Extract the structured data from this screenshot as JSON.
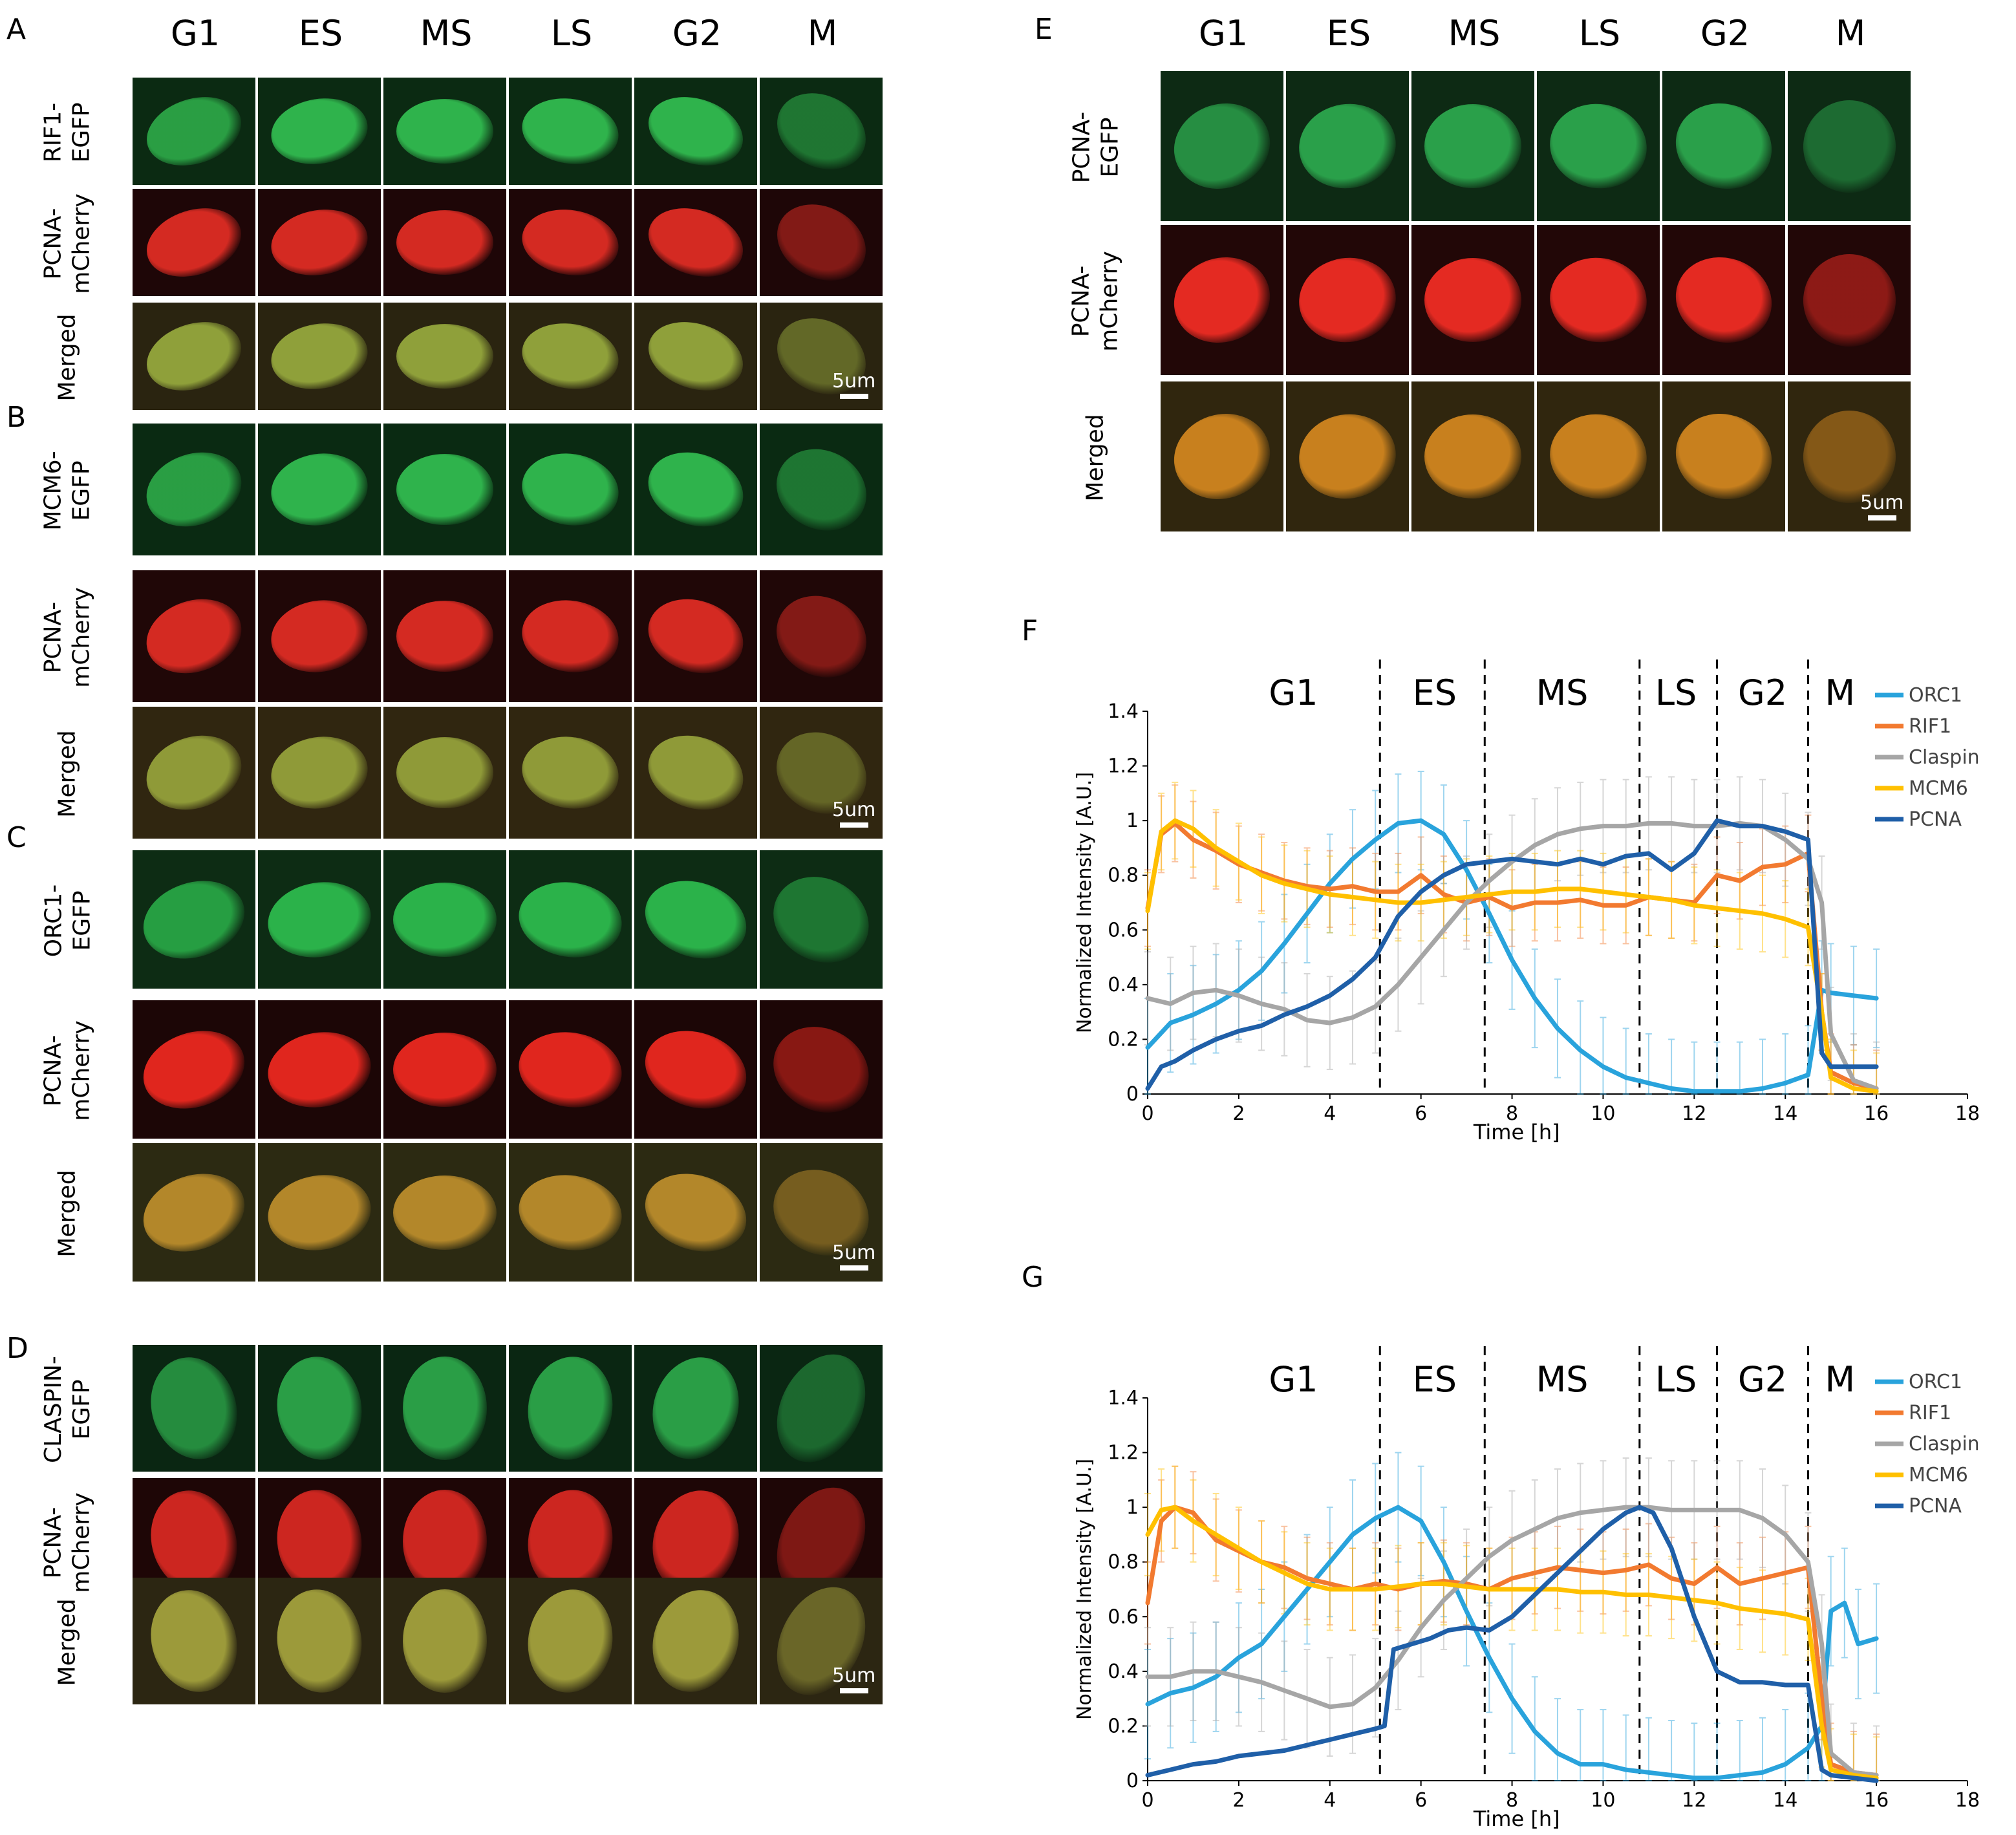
{
  "phases": [
    "G1",
    "ES",
    "MS",
    "LS",
    "G2",
    "M"
  ],
  "scale_bar": "5um",
  "panels": [
    {
      "letter": "A",
      "rows": [
        "RIF1-\nEGFP",
        "PCNA-\nmCherry",
        "Merged"
      ]
    },
    {
      "letter": "B",
      "rows": [
        "MCM6-\nEGFP",
        "PCNA-\nmCherry",
        "Merged"
      ]
    },
    {
      "letter": "C",
      "rows": [
        "ORC1-\nEGFP",
        "PCNA-\nmCherry",
        "Merged"
      ]
    },
    {
      "letter": "D",
      "rows": [
        "CLASPIN-\nEGFP",
        "PCNA-\nmCherry",
        "Merged"
      ]
    },
    {
      "letter": "E",
      "rows": [
        "PCNA-\nEGFP",
        "PCNA-\nmCherry",
        "Merged"
      ]
    }
  ],
  "chart_data": [
    {
      "panel": "F",
      "type": "line",
      "xlabel": "Time [h]",
      "ylabel": "Normalized Intensity [A.U.]",
      "xlim": [
        0,
        18
      ],
      "ylim": [
        0,
        1.4
      ],
      "xticks": [
        "0",
        "2",
        "4",
        "6",
        "8",
        "10",
        "12",
        "14",
        "16",
        "18"
      ],
      "yticks": [
        "0",
        "0.2",
        "0.4",
        "0.6",
        "0.8",
        "1",
        "1.2",
        "1.4"
      ],
      "phase_labels": [
        "G1",
        "ES",
        "MS",
        "LS",
        "G2",
        "M"
      ],
      "phase_label_x": [
        3.2,
        6.3,
        9.1,
        11.6,
        13.5,
        15.2
      ],
      "phase_boundaries": [
        5.1,
        7.4,
        10.8,
        12.5,
        14.5
      ],
      "series": [
        {
          "name": "ORC1",
          "color": "#29A3DC",
          "err": 0.18,
          "x": [
            0,
            0.5,
            1,
            1.5,
            2,
            2.5,
            3,
            3.5,
            4,
            4.5,
            5,
            5.5,
            6,
            6.5,
            7,
            7.5,
            8,
            8.5,
            9,
            9.5,
            10,
            10.5,
            11,
            11.5,
            12,
            12.5,
            13,
            13.5,
            14,
            14.5,
            14.8,
            15,
            15.5,
            16
          ],
          "y": [
            0.17,
            0.26,
            0.29,
            0.33,
            0.38,
            0.45,
            0.55,
            0.66,
            0.77,
            0.86,
            0.93,
            0.99,
            1.0,
            0.95,
            0.82,
            0.66,
            0.49,
            0.35,
            0.24,
            0.16,
            0.1,
            0.06,
            0.04,
            0.02,
            0.01,
            0.01,
            0.01,
            0.02,
            0.04,
            0.07,
            0.38,
            0.37,
            0.36,
            0.35
          ]
        },
        {
          "name": "RIF1",
          "color": "#F27A30",
          "err": 0.14,
          "x": [
            0,
            0.3,
            0.6,
            1,
            1.5,
            2,
            2.5,
            3,
            3.5,
            4,
            4.5,
            5,
            5.5,
            6,
            6.5,
            7,
            7.5,
            8,
            8.5,
            9,
            9.5,
            10,
            10.5,
            11,
            11.5,
            12,
            12.5,
            13,
            13.5,
            14,
            14.5,
            14.8,
            15,
            15.5,
            16
          ],
          "y": [
            0.68,
            0.95,
            0.99,
            0.93,
            0.89,
            0.84,
            0.81,
            0.78,
            0.76,
            0.75,
            0.76,
            0.74,
            0.74,
            0.8,
            0.73,
            0.7,
            0.72,
            0.68,
            0.7,
            0.7,
            0.71,
            0.69,
            0.69,
            0.72,
            0.71,
            0.7,
            0.8,
            0.78,
            0.83,
            0.84,
            0.88,
            0.3,
            0.08,
            0.04,
            0.02
          ]
        },
        {
          "name": "Claspin",
          "color": "#A6A6A6",
          "err": 0.17,
          "x": [
            0,
            0.5,
            1,
            1.5,
            2,
            2.5,
            3,
            3.5,
            4,
            4.5,
            5,
            5.5,
            6,
            6.5,
            7,
            7.5,
            8,
            8.5,
            9,
            9.5,
            10,
            10.5,
            11,
            11.5,
            12,
            12.5,
            13,
            13.5,
            14,
            14.5,
            14.8,
            15,
            15.5,
            16
          ],
          "y": [
            0.35,
            0.33,
            0.37,
            0.38,
            0.36,
            0.33,
            0.31,
            0.27,
            0.26,
            0.28,
            0.32,
            0.4,
            0.5,
            0.6,
            0.7,
            0.78,
            0.85,
            0.91,
            0.95,
            0.97,
            0.98,
            0.98,
            0.99,
            0.99,
            0.98,
            0.98,
            0.99,
            0.98,
            0.93,
            0.86,
            0.7,
            0.22,
            0.05,
            0.02
          ]
        },
        {
          "name": "MCM6",
          "color": "#FFC000",
          "err": 0.14,
          "x": [
            0,
            0.3,
            0.6,
            1,
            1.5,
            2,
            2.5,
            3,
            3.5,
            4,
            4.5,
            5,
            5.5,
            6,
            6.5,
            7,
            7.5,
            8,
            8.5,
            9,
            9.5,
            10,
            10.5,
            11,
            11.5,
            12,
            12.5,
            13,
            13.5,
            14,
            14.5,
            14.8,
            15,
            15.5,
            16
          ],
          "y": [
            0.67,
            0.96,
            1.0,
            0.97,
            0.9,
            0.85,
            0.8,
            0.77,
            0.75,
            0.73,
            0.72,
            0.71,
            0.7,
            0.7,
            0.71,
            0.72,
            0.73,
            0.74,
            0.74,
            0.75,
            0.75,
            0.74,
            0.73,
            0.72,
            0.71,
            0.69,
            0.68,
            0.67,
            0.66,
            0.64,
            0.61,
            0.3,
            0.06,
            0.02,
            0.01
          ]
        },
        {
          "name": "PCNA",
          "color": "#1F5FA8",
          "err": 0.0,
          "x": [
            0,
            0.3,
            0.6,
            1,
            1.5,
            2,
            2.5,
            3,
            3.5,
            4,
            4.5,
            5,
            5.5,
            6,
            6.5,
            7,
            7.5,
            8,
            8.5,
            9,
            9.5,
            10,
            10.5,
            11,
            11.5,
            12,
            12.5,
            13,
            13.5,
            14,
            14.5,
            14.8,
            15,
            15.5,
            16
          ],
          "y": [
            0.02,
            0.1,
            0.12,
            0.16,
            0.2,
            0.23,
            0.25,
            0.29,
            0.32,
            0.36,
            0.42,
            0.5,
            0.65,
            0.74,
            0.8,
            0.84,
            0.85,
            0.86,
            0.85,
            0.84,
            0.86,
            0.84,
            0.87,
            0.88,
            0.82,
            0.88,
            1.0,
            0.98,
            0.98,
            0.96,
            0.93,
            0.15,
            0.1,
            0.1,
            0.1
          ]
        }
      ]
    },
    {
      "panel": "G",
      "type": "line",
      "xlabel": "Time [h]",
      "ylabel": "Normalized Intensity [A.U.]",
      "xlim": [
        0,
        18
      ],
      "ylim": [
        0,
        1.4
      ],
      "xticks": [
        "0",
        "2",
        "4",
        "6",
        "8",
        "10",
        "12",
        "14",
        "16",
        "18"
      ],
      "yticks": [
        "0",
        "0.2",
        "0.4",
        "0.6",
        "0.8",
        "1",
        "1.2",
        "1.4"
      ],
      "phase_labels": [
        "G1",
        "ES",
        "MS",
        "LS",
        "G2",
        "M"
      ],
      "phase_label_x": [
        3.2,
        6.3,
        9.1,
        11.6,
        13.5,
        15.2
      ],
      "phase_boundaries": [
        5.1,
        7.4,
        10.8,
        12.5,
        14.5
      ],
      "series": [
        {
          "name": "ORC1",
          "color": "#29A3DC",
          "err": 0.2,
          "x": [
            0,
            0.5,
            1,
            1.5,
            2,
            2.5,
            3,
            3.5,
            4,
            4.5,
            5,
            5.5,
            6,
            6.5,
            7,
            7.5,
            8,
            8.5,
            9,
            9.5,
            10,
            10.5,
            11,
            11.5,
            12,
            12.5,
            13,
            13.5,
            14,
            14.5,
            14.8,
            15,
            15.3,
            15.6,
            16
          ],
          "y": [
            0.28,
            0.32,
            0.34,
            0.38,
            0.45,
            0.5,
            0.6,
            0.7,
            0.8,
            0.9,
            0.96,
            1.0,
            0.95,
            0.8,
            0.62,
            0.45,
            0.3,
            0.18,
            0.1,
            0.06,
            0.06,
            0.04,
            0.03,
            0.02,
            0.01,
            0.01,
            0.02,
            0.03,
            0.06,
            0.12,
            0.2,
            0.62,
            0.65,
            0.5,
            0.52
          ]
        },
        {
          "name": "RIF1",
          "color": "#F27A30",
          "err": 0.15,
          "x": [
            0,
            0.3,
            0.6,
            1,
            1.5,
            2,
            2.5,
            3,
            3.5,
            4,
            4.5,
            5,
            5.5,
            6,
            6.5,
            7,
            7.5,
            8,
            8.5,
            9,
            9.5,
            10,
            10.5,
            11,
            11.5,
            12,
            12.5,
            13,
            13.5,
            14,
            14.5,
            14.8,
            15,
            15.5,
            16
          ],
          "y": [
            0.65,
            0.95,
            1.0,
            0.98,
            0.88,
            0.84,
            0.8,
            0.78,
            0.74,
            0.72,
            0.7,
            0.72,
            0.7,
            0.72,
            0.73,
            0.72,
            0.7,
            0.74,
            0.76,
            0.78,
            0.77,
            0.76,
            0.77,
            0.79,
            0.74,
            0.72,
            0.78,
            0.72,
            0.74,
            0.76,
            0.78,
            0.3,
            0.06,
            0.03,
            0.02
          ]
        },
        {
          "name": "Claspin",
          "color": "#A6A6A6",
          "err": 0.18,
          "x": [
            0,
            0.5,
            1,
            1.5,
            2,
            2.5,
            3,
            3.5,
            4,
            4.5,
            5,
            5.5,
            6,
            6.5,
            7,
            7.5,
            8,
            8.5,
            9,
            9.5,
            10,
            10.5,
            11,
            11.5,
            12,
            12.5,
            13,
            13.5,
            14,
            14.5,
            14.8,
            15,
            15.5,
            16
          ],
          "y": [
            0.38,
            0.38,
            0.4,
            0.4,
            0.38,
            0.36,
            0.33,
            0.3,
            0.27,
            0.28,
            0.34,
            0.44,
            0.56,
            0.66,
            0.74,
            0.82,
            0.88,
            0.92,
            0.96,
            0.98,
            0.99,
            1.0,
            1.0,
            0.99,
            0.99,
            0.99,
            0.99,
            0.96,
            0.9,
            0.8,
            0.5,
            0.1,
            0.03,
            0.02
          ]
        },
        {
          "name": "MCM6",
          "color": "#FFC000",
          "err": 0.15,
          "x": [
            0,
            0.3,
            0.6,
            1,
            1.5,
            2,
            2.5,
            3,
            3.5,
            4,
            4.5,
            5,
            5.5,
            6,
            6.5,
            7,
            7.5,
            8,
            8.5,
            9,
            9.5,
            10,
            10.5,
            11,
            11.5,
            12,
            12.5,
            13,
            13.5,
            14,
            14.5,
            14.8,
            15,
            15.5,
            16
          ],
          "y": [
            0.9,
            0.99,
            1.0,
            0.95,
            0.9,
            0.85,
            0.8,
            0.76,
            0.72,
            0.7,
            0.7,
            0.7,
            0.71,
            0.72,
            0.72,
            0.71,
            0.7,
            0.7,
            0.7,
            0.7,
            0.69,
            0.69,
            0.68,
            0.68,
            0.67,
            0.66,
            0.65,
            0.63,
            0.62,
            0.61,
            0.59,
            0.2,
            0.04,
            0.02,
            0.01
          ]
        },
        {
          "name": "PCNA",
          "color": "#1F5FA8",
          "err": 0.0,
          "x": [
            0,
            0.5,
            1,
            1.5,
            2,
            2.5,
            3,
            3.5,
            4,
            4.5,
            5,
            5.2,
            5.4,
            5.8,
            6.2,
            6.6,
            7,
            7.5,
            8,
            8.5,
            9,
            9.5,
            10,
            10.5,
            10.8,
            11.1,
            11.5,
            12,
            12.5,
            13,
            13.5,
            14,
            14.5,
            14.8,
            15,
            15.5,
            16
          ],
          "y": [
            0.02,
            0.04,
            0.06,
            0.07,
            0.09,
            0.1,
            0.11,
            0.13,
            0.15,
            0.17,
            0.19,
            0.2,
            0.48,
            0.5,
            0.52,
            0.55,
            0.56,
            0.55,
            0.6,
            0.68,
            0.76,
            0.84,
            0.92,
            0.98,
            1.0,
            0.98,
            0.85,
            0.6,
            0.4,
            0.36,
            0.36,
            0.35,
            0.35,
            0.04,
            0.02,
            0.01,
            0.0
          ]
        }
      ]
    }
  ]
}
